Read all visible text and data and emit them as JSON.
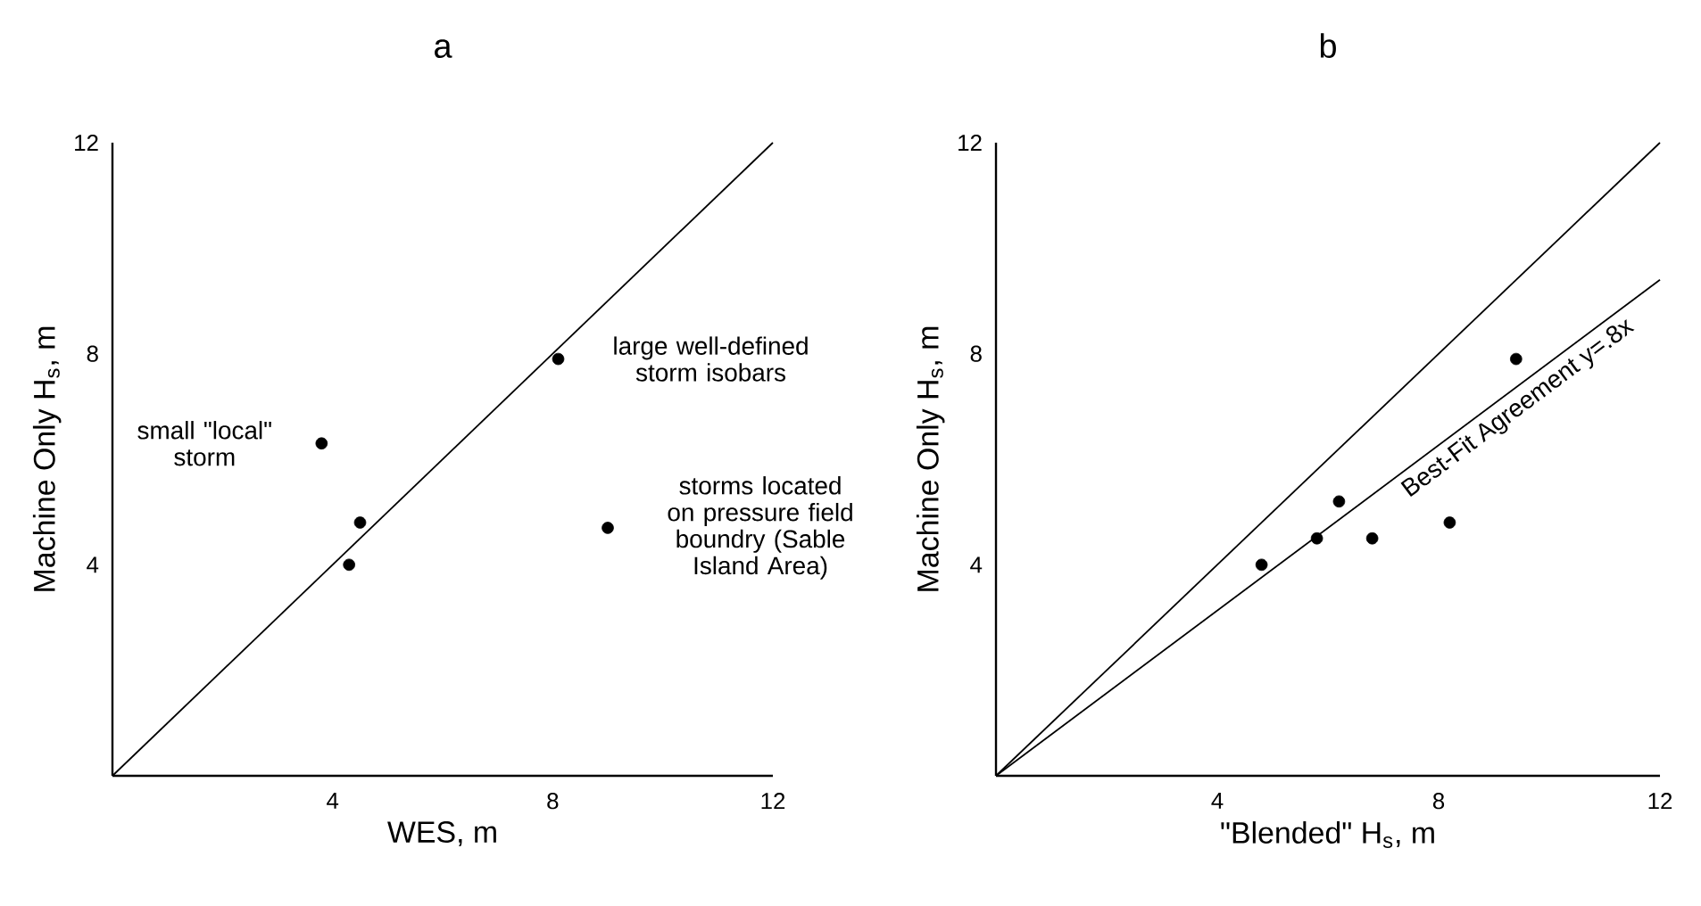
{
  "chart_data": [
    {
      "type": "scatter",
      "title": "a",
      "xlabel": "WES, m",
      "ylabel": "Machine Only H$_{s}$, m",
      "xlim": [
        0,
        12
      ],
      "ylim": [
        0,
        12
      ],
      "xticks": [
        4,
        8,
        12
      ],
      "yticks": [
        4,
        8,
        12
      ],
      "grid": false,
      "line_style": "solid",
      "series": [
        {
          "type": "line",
          "marker": "none",
          "color": "#000000",
          "x": [
            0,
            12
          ],
          "values": [
            0,
            12
          ]
        },
        {
          "marker": "circle",
          "color": "#000000",
          "x": [
            4.3,
            4.5,
            8.1,
            3.8,
            9.0
          ],
          "values": [
            4.0,
            4.8,
            7.9,
            6.3,
            4.7
          ]
        }
      ],
      "annotations": [
        {
          "text": "small \"local\" storm",
          "x": 3.8,
          "y": 6.3
        },
        {
          "text": "large well-defined storm isobars",
          "x": 8.1,
          "y": 7.9
        },
        {
          "text": "storms located on pressure field boundry (Sable Island Area)",
          "x": 9.0,
          "y": 4.7
        }
      ]
    },
    {
      "type": "scatter",
      "title": "b",
      "xlabel": "\"Blended\" H$_{s}$, m",
      "ylabel": "Machine Only H$_{s}$, m",
      "xlim": [
        0,
        12
      ],
      "ylim": [
        0,
        12
      ],
      "xticks": [
        4,
        8,
        12
      ],
      "yticks": [
        4,
        8,
        12
      ],
      "grid": false,
      "line_style": "solid",
      "series": [
        {
          "type": "line",
          "marker": "none",
          "color": "#000000",
          "x": [
            0,
            12
          ],
          "values": [
            0,
            12
          ]
        },
        {
          "type": "line",
          "marker": "none",
          "color": "#000000",
          "x": [
            0,
            12
          ],
          "values": [
            0,
            9.4
          ]
        },
        {
          "marker": "circle",
          "color": "#000000",
          "x": [
            4.8,
            5.8,
            6.2,
            6.8,
            8.2,
            9.4
          ],
          "values": [
            4.0,
            4.5,
            5.2,
            4.5,
            4.8,
            7.9
          ]
        }
      ],
      "annotations": [
        "Best-Fit Agreement y=.8x"
      ]
    }
  ]
}
